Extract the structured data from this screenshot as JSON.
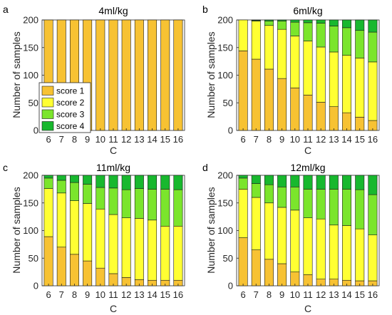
{
  "colors": {
    "score1": "#f7c233",
    "score2": "#ffff33",
    "score3": "#7be52c",
    "score4": "#18b82e",
    "axis": "#262626",
    "background": "#ffffff"
  },
  "chart_data": [
    {
      "type": "bar",
      "stacked": true,
      "panel_label": "a",
      "title": "4ml/kg",
      "xlabel": "C",
      "ylabel": "Number of samples",
      "ylim": [
        0,
        200
      ],
      "yticks": [
        0,
        50,
        100,
        150,
        200
      ],
      "categories": [
        "6",
        "7",
        "8",
        "9",
        "10",
        "11",
        "12",
        "13",
        "14",
        "15",
        "16"
      ],
      "legend_position": "bottom-left",
      "series": [
        {
          "name": "score 1",
          "values": [
            200,
            200,
            200,
            200,
            200,
            200,
            200,
            200,
            200,
            200,
            200
          ]
        },
        {
          "name": "score 2",
          "values": [
            0,
            0,
            0,
            0,
            0,
            0,
            0,
            0,
            0,
            0,
            0
          ]
        },
        {
          "name": "score 3",
          "values": [
            0,
            0,
            0,
            0,
            0,
            0,
            0,
            0,
            0,
            0,
            0
          ]
        },
        {
          "name": "score 4",
          "values": [
            0,
            0,
            0,
            0,
            0,
            0,
            0,
            0,
            0,
            0,
            0
          ]
        }
      ]
    },
    {
      "type": "bar",
      "stacked": true,
      "panel_label": "b",
      "title": "6ml/kg",
      "xlabel": "C",
      "ylabel": "Number of samples",
      "ylim": [
        0,
        200
      ],
      "yticks": [
        0,
        50,
        100,
        150,
        200
      ],
      "categories": [
        "6",
        "7",
        "8",
        "9",
        "10",
        "11",
        "12",
        "13",
        "14",
        "15",
        "16"
      ],
      "series": [
        {
          "name": "score 1",
          "values": [
            144,
            129,
            111,
            94,
            77,
            64,
            51,
            43,
            32,
            24,
            18
          ]
        },
        {
          "name": "score 2",
          "values": [
            56,
            69,
            79,
            89,
            94,
            98,
            100,
            99,
            104,
            107,
            106
          ]
        },
        {
          "name": "score 3",
          "values": [
            0,
            1,
            8,
            15,
            25,
            33,
            43,
            47,
            50,
            50,
            54
          ]
        },
        {
          "name": "score 4",
          "values": [
            0,
            1,
            2,
            2,
            4,
            5,
            6,
            11,
            14,
            19,
            22
          ]
        }
      ]
    },
    {
      "type": "bar",
      "stacked": true,
      "panel_label": "c",
      "title": "11ml/kg",
      "xlabel": "C",
      "ylabel": "Number of samples",
      "ylim": [
        0,
        200
      ],
      "yticks": [
        0,
        50,
        100,
        150,
        200
      ],
      "categories": [
        "6",
        "7",
        "8",
        "9",
        "10",
        "11",
        "12",
        "13",
        "14",
        "15",
        "16"
      ],
      "series": [
        {
          "name": "score 1",
          "values": [
            89,
            70,
            57,
            45,
            32,
            22,
            15,
            11,
            10,
            10,
            10
          ]
        },
        {
          "name": "score 2",
          "values": [
            87,
            98,
            97,
            104,
            107,
            107,
            108,
            111,
            109,
            98,
            98
          ]
        },
        {
          "name": "score 3",
          "values": [
            19,
            23,
            33,
            35,
            39,
            48,
            51,
            54,
            56,
            67,
            66
          ]
        },
        {
          "name": "score 4",
          "values": [
            5,
            9,
            13,
            16,
            22,
            23,
            26,
            24,
            25,
            25,
            26
          ]
        }
      ]
    },
    {
      "type": "bar",
      "stacked": true,
      "panel_label": "d",
      "title": "12ml/kg",
      "xlabel": "C",
      "ylabel": "Number of samples",
      "ylim": [
        0,
        200
      ],
      "yticks": [
        0,
        50,
        100,
        150,
        200
      ],
      "categories": [
        "6",
        "7",
        "8",
        "9",
        "10",
        "11",
        "12",
        "13",
        "14",
        "15",
        "16"
      ],
      "series": [
        {
          "name": "score 1",
          "values": [
            87,
            65,
            48,
            40,
            25,
            20,
            12,
            12,
            10,
            9,
            9
          ]
        },
        {
          "name": "score 2",
          "values": [
            88,
            95,
            102,
            102,
            112,
            103,
            109,
            98,
            99,
            94,
            83
          ]
        },
        {
          "name": "score 3",
          "values": [
            20,
            25,
            33,
            37,
            42,
            52,
            54,
            65,
            66,
            71,
            73
          ]
        },
        {
          "name": "score 4",
          "values": [
            5,
            15,
            17,
            21,
            21,
            25,
            25,
            25,
            25,
            26,
            35
          ]
        }
      ]
    }
  ]
}
